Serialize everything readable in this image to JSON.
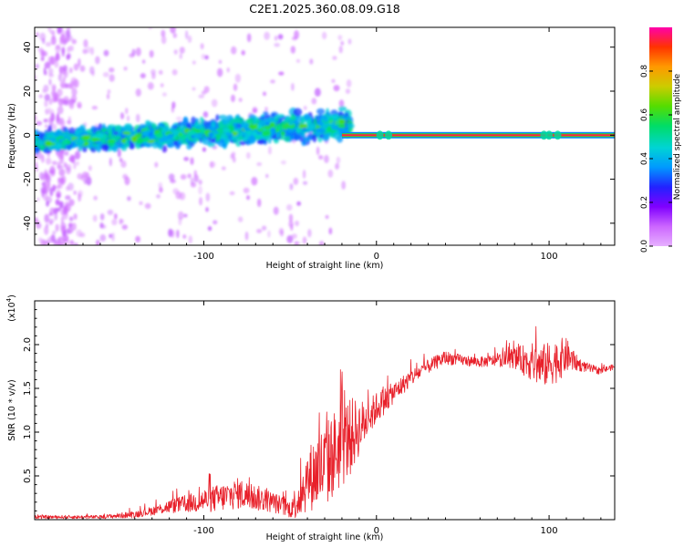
{
  "title": "C2E1.2025.360.08.09.G18",
  "chart_data": [
    {
      "type": "heatmap",
      "name": "spectrogram",
      "xlabel": "Height of straight line (km)",
      "ylabel": "Frequency (Hz)",
      "xlim": [
        -198,
        138
      ],
      "ylim": [
        -50,
        49
      ],
      "xticks": [
        -100,
        0,
        100
      ],
      "xtick_labels": [
        "-100",
        "0",
        "100"
      ],
      "yticks": [
        -40,
        -20,
        0,
        20,
        40
      ],
      "ytick_labels": [
        "-40",
        "-20",
        "0",
        "20",
        "40"
      ],
      "colorbar": {
        "label": "Normalized spectral amplitude",
        "range": [
          0,
          1
        ],
        "ticks": [
          0.0,
          0.2,
          0.4,
          0.6,
          0.8
        ],
        "tick_labels": [
          "0.0",
          "0.2",
          "0.4",
          "0.6",
          "0.8"
        ],
        "colors": [
          "#e6b0ff",
          "#cc66ff",
          "#8000ff",
          "#2222ff",
          "#0099ff",
          "#00d4d4",
          "#00dd66",
          "#55dd00",
          "#cccc00",
          "#ff9900",
          "#ff3300",
          "#ff00aa"
        ]
      },
      "features": [
        {
          "name": "scattered noise",
          "x_range": [
            -198,
            -15
          ],
          "freq_range": [
            -50,
            49
          ],
          "amplitude": 0.1
        },
        {
          "name": "broadband signal band",
          "x_range": [
            -198,
            -15
          ],
          "freq_center": [
            -3,
            5
          ],
          "freq_halfwidth": [
            6,
            9
          ],
          "amplitude": 0.3
        },
        {
          "name": "bright blobs",
          "x_range": [
            -190,
            -20
          ],
          "amplitude": 0.5
        },
        {
          "name": "carrier line",
          "x_range": [
            -20,
            138
          ],
          "freq": 0,
          "amplitude": 1.0
        }
      ]
    },
    {
      "type": "line",
      "name": "snr",
      "xlabel": "Height of straight line (km)",
      "ylabel": "SNR (10 * v/v)",
      "scale_label": "(x10",
      "scale_exp": "4",
      "scale_close": ")",
      "color": "#e8202a",
      "xlim": [
        -198,
        138
      ],
      "ylim": [
        0,
        2.5
      ],
      "xticks": [
        -100,
        0,
        100
      ],
      "xtick_labels": [
        "-100",
        "0",
        "100"
      ],
      "yticks": [
        0.5,
        1.0,
        1.5,
        2.0
      ],
      "ytick_labels": [
        "0.5",
        "1.0",
        "1.5",
        "2.0"
      ],
      "x": [
        -198,
        -180,
        -160,
        -140,
        -130,
        -120,
        -110,
        -100,
        -90,
        -80,
        -70,
        -60,
        -50,
        -45,
        -40,
        -35,
        -30,
        -25,
        -20,
        -15,
        -10,
        -5,
        0,
        10,
        20,
        30,
        40,
        50,
        60,
        70,
        80,
        90,
        95,
        100,
        105,
        110,
        115,
        120,
        125,
        130,
        138
      ],
      "y": [
        0.03,
        0.03,
        0.03,
        0.06,
        0.1,
        0.15,
        0.18,
        0.22,
        0.25,
        0.3,
        0.25,
        0.2,
        0.12,
        0.25,
        0.45,
        0.55,
        0.6,
        0.75,
        0.85,
        0.95,
        1.05,
        1.15,
        1.28,
        1.45,
        1.62,
        1.75,
        1.85,
        1.82,
        1.8,
        1.82,
        1.85,
        1.8,
        1.75,
        1.78,
        1.82,
        1.88,
        1.8,
        1.75,
        1.72,
        1.7,
        1.75
      ],
      "noise_amplitude": [
        0.02,
        0.02,
        0.02,
        0.04,
        0.05,
        0.08,
        0.1,
        0.14,
        0.16,
        0.18,
        0.15,
        0.12,
        0.1,
        0.25,
        0.35,
        0.45,
        0.5,
        0.5,
        0.5,
        0.45,
        0.32,
        0.22,
        0.18,
        0.12,
        0.1,
        0.08,
        0.08,
        0.06,
        0.06,
        0.07,
        0.12,
        0.22,
        0.25,
        0.25,
        0.25,
        0.2,
        0.1,
        0.06,
        0.05,
        0.04,
        0.03
      ]
    }
  ]
}
